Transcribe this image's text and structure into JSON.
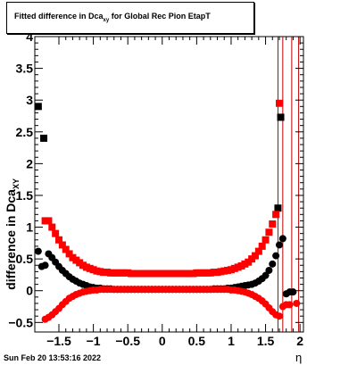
{
  "chart_data": {
    "type": "scatter",
    "title_main": "Fitted difference in Dca",
    "title_sub": "xy",
    "title_rest": " for Global Rec Pion EtapT",
    "ylabel_main": "difference in Dca",
    "ylabel_sub": "XY",
    "xlabel": "η",
    "xlim": [
      -1.85,
      2.05
    ],
    "ylim": [
      -0.65,
      4.0
    ],
    "xticks": [
      -1.5,
      -1,
      -0.5,
      0,
      0.5,
      1,
      1.5,
      2
    ],
    "xtick_labels": [
      "−1.5",
      "−1",
      "−0.5",
      "0",
      "0.5",
      "1",
      "1.5",
      "2"
    ],
    "yticks": [
      -0.5,
      0,
      0.5,
      1,
      1.5,
      2,
      2.5,
      3,
      3.5,
      4
    ],
    "ytick_labels": [
      "−0.5",
      "0",
      "0.5",
      "1",
      "1.5",
      "2",
      "2.5",
      "3",
      "3.5",
      "4"
    ],
    "grid": false,
    "series": [
      {
        "color": "#000000",
        "marker": "circle",
        "x": [
          -1.8,
          -1.75,
          -1.7,
          -1.65,
          -1.6,
          -1.55,
          -1.5,
          -1.45,
          -1.4,
          -1.35,
          -1.3,
          -1.25,
          -1.2,
          -1.15,
          -1.1,
          -1.05,
          -1.0,
          -0.95,
          -0.9,
          -0.85,
          -0.8,
          -0.75,
          -0.7,
          -0.65,
          -0.6,
          -0.55,
          -0.5,
          -0.45,
          -0.4,
          -0.35,
          -0.3,
          -0.25,
          -0.2,
          -0.15,
          -0.1,
          -0.05,
          0,
          0.05,
          0.1,
          0.15,
          0.2,
          0.25,
          0.3,
          0.35,
          0.4,
          0.45,
          0.5,
          0.55,
          0.6,
          0.65,
          0.7,
          0.75,
          0.8,
          0.85,
          0.9,
          0.95,
          1.0,
          1.05,
          1.1,
          1.15,
          1.2,
          1.25,
          1.3,
          1.35,
          1.4,
          1.45,
          1.5,
          1.55,
          1.6,
          1.65,
          1.7,
          1.75,
          1.8,
          1.85,
          1.9
        ],
        "y": [
          0.62,
          0.38,
          0.4,
          0.58,
          0.52,
          0.45,
          0.38,
          0.32,
          0.27,
          0.22,
          0.18,
          0.15,
          0.12,
          0.1,
          0.08,
          0.06,
          0.05,
          0.04,
          0.04,
          0.03,
          0.03,
          0.03,
          0.02,
          0.02,
          0.02,
          0.02,
          0.02,
          0.02,
          0.02,
          0.02,
          0.02,
          0.02,
          0.02,
          0.02,
          0.02,
          0.02,
          0.02,
          0.02,
          0.02,
          0.02,
          0.02,
          0.02,
          0.02,
          0.02,
          0.02,
          0.02,
          0.02,
          0.02,
          0.02,
          0.02,
          0.02,
          0.03,
          0.03,
          0.03,
          0.03,
          0.04,
          0.04,
          0.05,
          0.06,
          0.07,
          0.08,
          0.09,
          0.1,
          0.12,
          0.15,
          0.19,
          0.24,
          0.32,
          0.42,
          0.55,
          0.72,
          0.82,
          -0.05,
          -0.02,
          -0.02
        ]
      },
      {
        "color": "#000000",
        "marker": "square",
        "x": [
          -1.8,
          -1.72,
          1.68,
          1.72
        ],
        "y": [
          2.9,
          2.4,
          1.3,
          2.73
        ]
      },
      {
        "color": "#ff0000",
        "marker": "square",
        "x": [
          -1.7,
          -1.65,
          -1.6,
          -1.55,
          -1.5,
          -1.45,
          -1.4,
          -1.35,
          -1.3,
          -1.25,
          -1.2,
          -1.15,
          -1.1,
          -1.05,
          -1.0,
          -0.95,
          -0.9,
          -0.85,
          -0.8,
          -0.75,
          -0.7,
          -0.65,
          -0.6,
          -0.55,
          -0.5,
          -0.45,
          -0.4,
          -0.35,
          -0.3,
          -0.25,
          -0.2,
          -0.15,
          -0.1,
          -0.05,
          0,
          0.05,
          0.1,
          0.15,
          0.2,
          0.25,
          0.3,
          0.35,
          0.4,
          0.45,
          0.5,
          0.55,
          0.6,
          0.65,
          0.7,
          0.75,
          0.8,
          0.85,
          0.9,
          0.95,
          1.0,
          1.05,
          1.1,
          1.15,
          1.2,
          1.25,
          1.3,
          1.35,
          1.4,
          1.45,
          1.5,
          1.55,
          1.6,
          1.65,
          1.7
        ],
        "y": [
          1.1,
          1.1,
          1.0,
          0.9,
          0.8,
          0.72,
          0.65,
          0.58,
          0.52,
          0.48,
          0.44,
          0.4,
          0.37,
          0.35,
          0.33,
          0.31,
          0.3,
          0.29,
          0.29,
          0.28,
          0.28,
          0.28,
          0.28,
          0.28,
          0.28,
          0.27,
          0.27,
          0.27,
          0.27,
          0.27,
          0.27,
          0.27,
          0.27,
          0.27,
          0.27,
          0.27,
          0.27,
          0.27,
          0.27,
          0.27,
          0.27,
          0.27,
          0.27,
          0.27,
          0.28,
          0.28,
          0.28,
          0.28,
          0.28,
          0.29,
          0.29,
          0.3,
          0.31,
          0.32,
          0.33,
          0.35,
          0.37,
          0.39,
          0.42,
          0.45,
          0.5,
          0.55,
          0.62,
          0.7,
          0.8,
          0.92,
          1.05,
          1.2,
          2.95
        ]
      },
      {
        "color": "#ff0000",
        "marker": "circle",
        "x": [
          -1.7,
          -1.65,
          -1.6,
          -1.55,
          -1.5,
          -1.45,
          -1.4,
          -1.35,
          -1.3,
          -1.25,
          -1.2,
          -1.15,
          -1.1,
          -1.05,
          -1.0,
          -0.95,
          -0.9,
          -0.85,
          -0.8,
          -0.75,
          -0.7,
          -0.65,
          -0.6,
          -0.55,
          -0.5,
          -0.45,
          -0.4,
          -0.35,
          -0.3,
          -0.25,
          -0.2,
          -0.15,
          -0.1,
          -0.05,
          0,
          0.05,
          0.1,
          0.15,
          0.2,
          0.25,
          0.3,
          0.35,
          0.4,
          0.45,
          0.5,
          0.55,
          0.6,
          0.65,
          0.7,
          0.75,
          0.8,
          0.85,
          0.9,
          0.95,
          1.0,
          1.05,
          1.1,
          1.15,
          1.2,
          1.25,
          1.3,
          1.35,
          1.4,
          1.45,
          1.5,
          1.55,
          1.6,
          1.65,
          1.7,
          1.75,
          1.8,
          1.85,
          1.95
        ],
        "y": [
          -0.45,
          -0.42,
          -0.38,
          -0.33,
          -0.28,
          -0.22,
          -0.17,
          -0.12,
          -0.09,
          -0.06,
          -0.04,
          -0.02,
          -0.01,
          0.0,
          0.01,
          0.01,
          0.02,
          0.02,
          0.02,
          0.02,
          0.02,
          0.02,
          0.02,
          0.02,
          0.02,
          0.02,
          0.02,
          0.02,
          0.02,
          0.02,
          0.02,
          0.02,
          0.02,
          0.02,
          0.02,
          0.02,
          0.02,
          0.02,
          0.02,
          0.02,
          0.02,
          0.02,
          0.02,
          0.02,
          0.02,
          0.02,
          0.02,
          0.02,
          0.02,
          0.02,
          0.02,
          0.02,
          0.02,
          0.02,
          0.01,
          0.01,
          0.0,
          -0.01,
          -0.02,
          -0.04,
          -0.06,
          -0.09,
          -0.12,
          -0.16,
          -0.21,
          -0.27,
          -0.33,
          -0.38,
          -0.4,
          -0.25,
          -0.22,
          -0.22,
          -0.2
        ]
      }
    ],
    "vertical_lines": {
      "color": "#bb0000",
      "x": [
        1.68,
        1.75,
        1.88,
        1.98
      ]
    }
  },
  "datestamp": "Sun Feb 20 13:53:16 2022"
}
